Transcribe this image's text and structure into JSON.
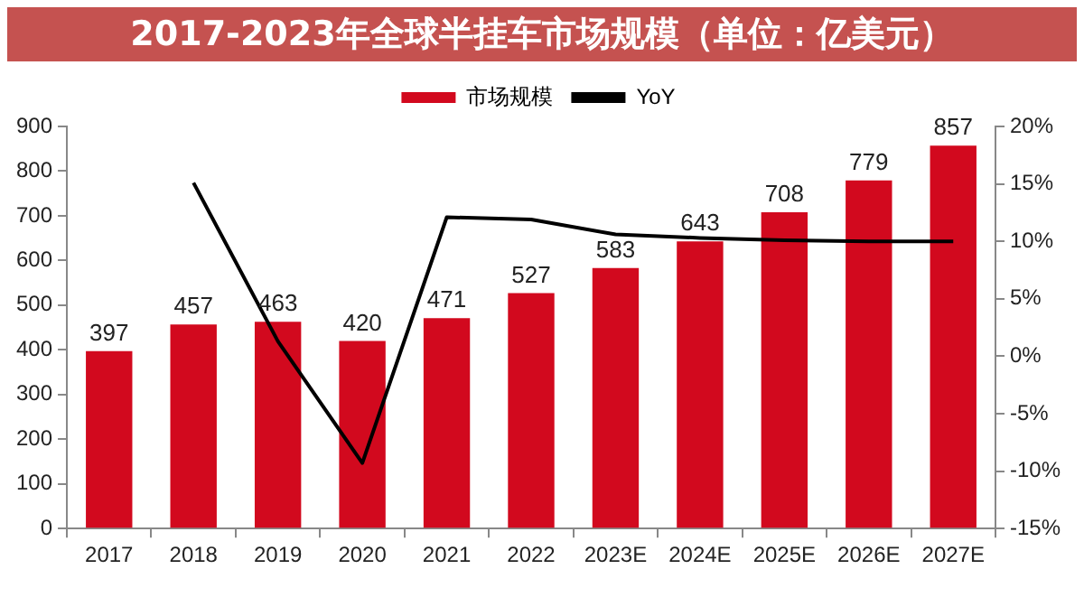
{
  "chart_data": {
    "type": "bar",
    "title": "2017-2023年全球半挂车市场规模（单位：亿美元）",
    "categories": [
      "2017",
      "2018",
      "2019",
      "2020",
      "2021",
      "2022",
      "2023E",
      "2024E",
      "2025E",
      "2026E",
      "2027E"
    ],
    "series": [
      {
        "name": "市场规模",
        "color": "#d2091e",
        "values": [
          397,
          457,
          463,
          420,
          471,
          527,
          583,
          643,
          708,
          779,
          857
        ],
        "value_labels": [
          "397",
          "457",
          "463",
          "420",
          "471",
          "527",
          "583",
          "643",
          "708",
          "779",
          "857"
        ]
      },
      {
        "name": "YoY",
        "type": "line",
        "axis": "y2",
        "color": "#000000",
        "values": [
          null,
          15.1,
          1.3,
          -9.3,
          12.1,
          11.9,
          10.6,
          10.3,
          10.1,
          10.0,
          10.0
        ]
      }
    ],
    "ylim": [
      0,
      900
    ],
    "yticks": [
      0,
      100,
      200,
      300,
      400,
      500,
      600,
      700,
      800,
      900
    ],
    "y2lim": [
      -15,
      20
    ],
    "y2ticks": [
      {
        "value": -15,
        "label": "-15%"
      },
      {
        "value": -10,
        "label": "-10%"
      },
      {
        "value": -5,
        "label": "-5%"
      },
      {
        "value": 0,
        "label": "0%"
      },
      {
        "value": 5,
        "label": "5%"
      },
      {
        "value": 10,
        "label": "10%"
      },
      {
        "value": 15,
        "label": "15%"
      },
      {
        "value": 20,
        "label": "20%"
      }
    ],
    "grid": false,
    "legend": "top",
    "marker": "none",
    "line_style": "solid"
  }
}
